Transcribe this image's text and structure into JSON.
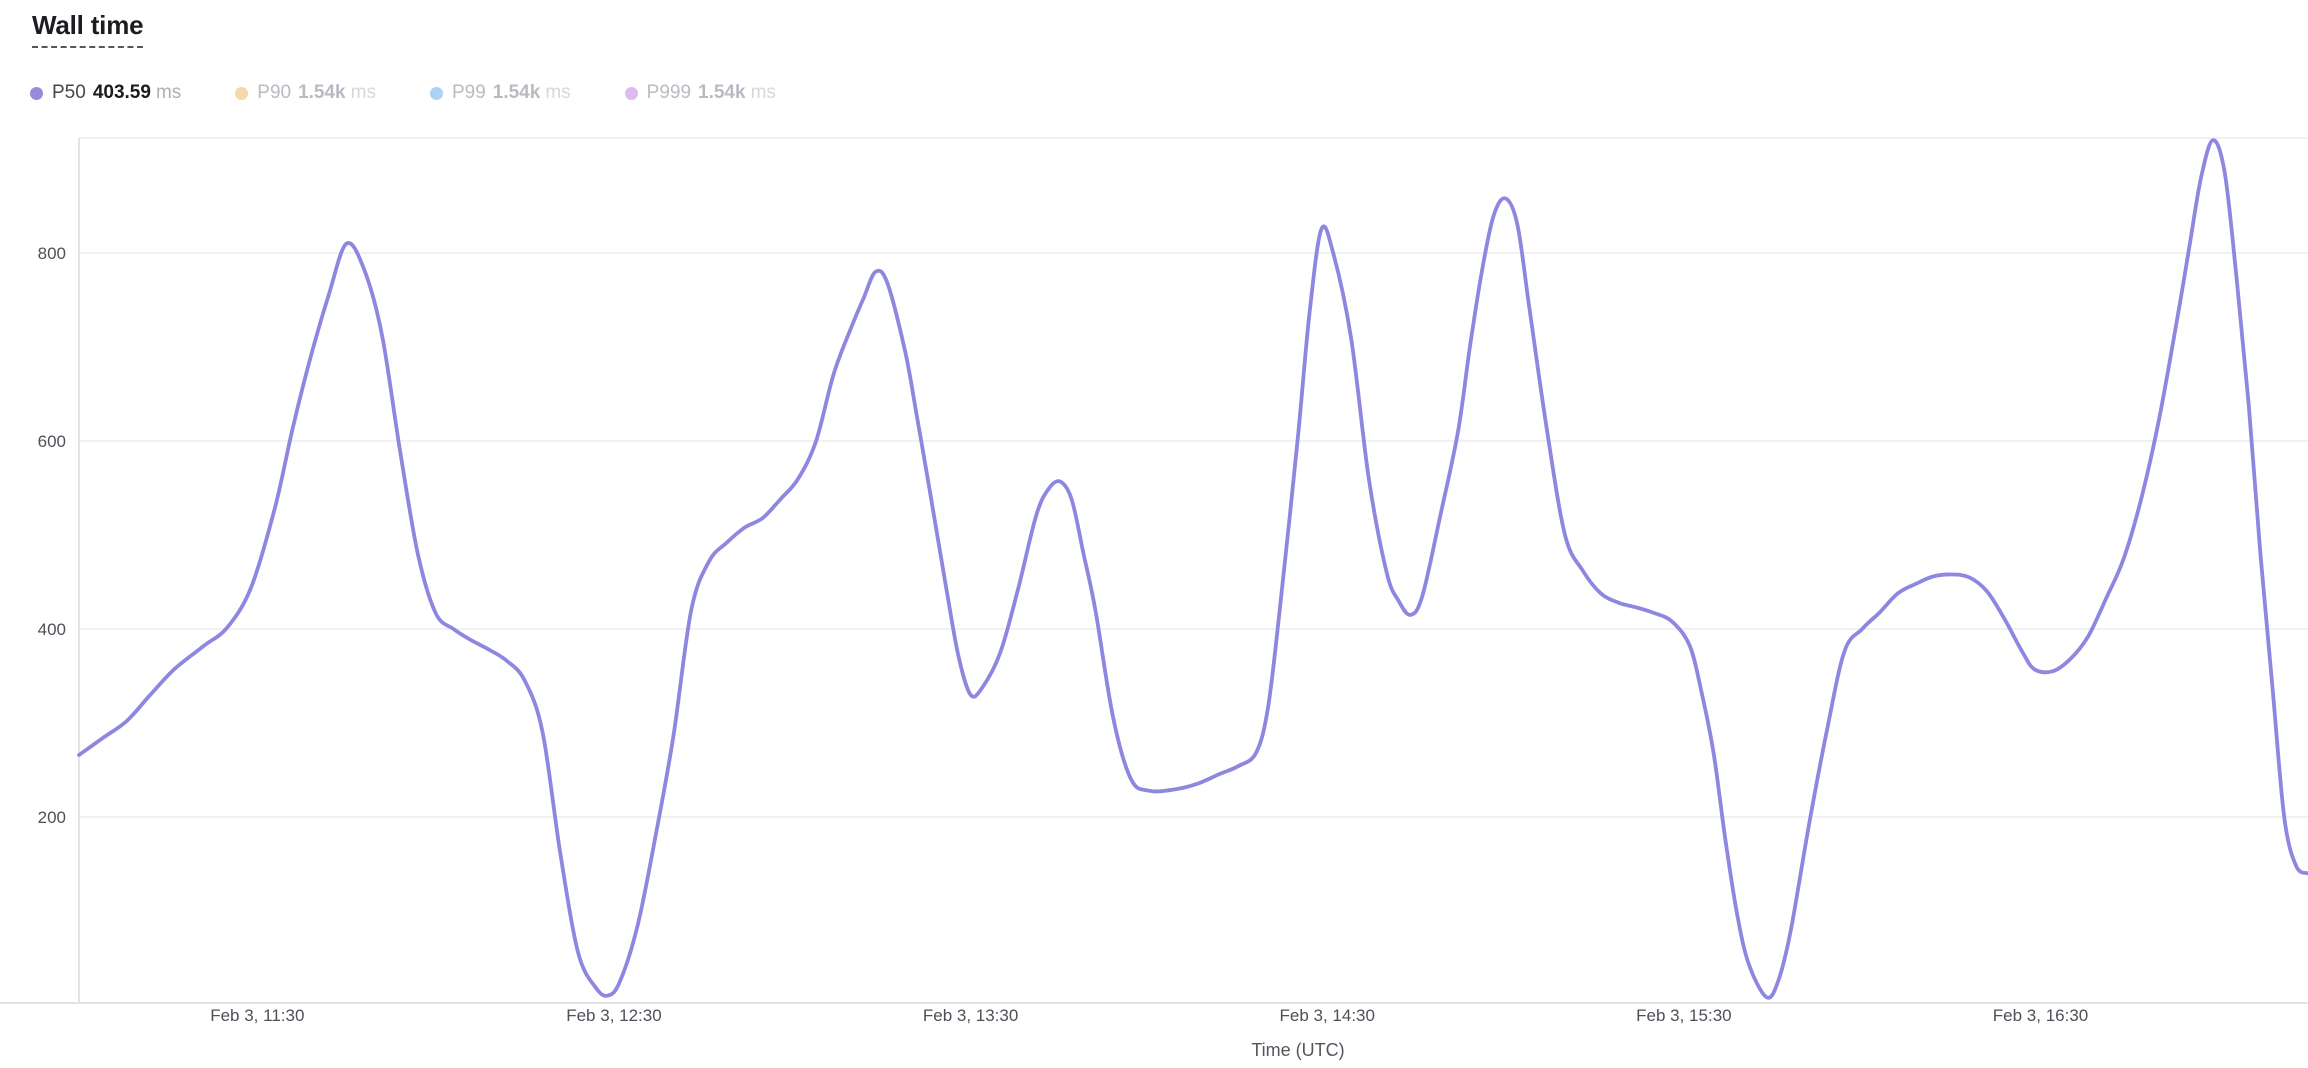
{
  "header": {
    "title": "Wall time"
  },
  "legend": {
    "items": [
      {
        "name": "P50",
        "value": "403.59",
        "unit": "ms",
        "color": "#968bdb",
        "active": true
      },
      {
        "name": "P90",
        "value": "1.54k",
        "unit": "ms",
        "color": "#f7d7ac",
        "active": false
      },
      {
        "name": "P99",
        "value": "1.54k",
        "unit": "ms",
        "color": "#a9d2f4",
        "active": false
      },
      {
        "name": "P999",
        "value": "1.54k",
        "unit": "ms",
        "color": "#ddbbf2",
        "active": false
      }
    ]
  },
  "colors": {
    "line": "#8e87e0",
    "grid": "#f1f1f4",
    "axis": "#e2e2e7",
    "tick_text": "#4f4f57",
    "axis_title_text": "#55555d"
  },
  "chart_data": {
    "type": "line",
    "title": "Wall time",
    "xlabel": "Time (UTC)",
    "ylabel": "",
    "y_unit": "ms",
    "ylim": [
      0,
      925
    ],
    "y_ticks": [
      200,
      400,
      600,
      800
    ],
    "grid": "horizontal",
    "legend_position": "top-left",
    "x_origin_label": "Feb 3, 11:00",
    "x_range_minutes": [
      0,
      375
    ],
    "x_ticks": [
      {
        "minutes": 30,
        "label": "Feb 3, 11:30"
      },
      {
        "minutes": 90,
        "label": "Feb 3, 12:30"
      },
      {
        "minutes": 150,
        "label": "Feb 3, 13:30"
      },
      {
        "minutes": 210,
        "label": "Feb 3, 14:30"
      },
      {
        "minutes": 270,
        "label": "Feb 3, 15:30"
      },
      {
        "minutes": 330,
        "label": "Feb 3, 16:30"
      }
    ],
    "series": [
      {
        "name": "P50",
        "unit": "ms",
        "current": "403.59",
        "points": [
          [
            0,
            266
          ],
          [
            4,
            284
          ],
          [
            8,
            302
          ],
          [
            12,
            330
          ],
          [
            16,
            357
          ],
          [
            21,
            382
          ],
          [
            25,
            402
          ],
          [
            29,
            445
          ],
          [
            33,
            530
          ],
          [
            36,
            615
          ],
          [
            39,
            690
          ],
          [
            42,
            755
          ],
          [
            45,
            810
          ],
          [
            48,
            782
          ],
          [
            51,
            712
          ],
          [
            54,
            590
          ],
          [
            57,
            480
          ],
          [
            60,
            417
          ],
          [
            63,
            400
          ],
          [
            66,
            388
          ],
          [
            69,
            378
          ],
          [
            72,
            366
          ],
          [
            75,
            345
          ],
          [
            78,
            290
          ],
          [
            81,
            160
          ],
          [
            84,
            55
          ],
          [
            87,
            18
          ],
          [
            89,
            10
          ],
          [
            91,
            25
          ],
          [
            94,
            85
          ],
          [
            97,
            180
          ],
          [
            100,
            286
          ],
          [
            103,
            420
          ],
          [
            106,
            472
          ],
          [
            109,
            492
          ],
          [
            112,
            508
          ],
          [
            115,
            518
          ],
          [
            118,
            538
          ],
          [
            121,
            560
          ],
          [
            124,
            600
          ],
          [
            127,
            672
          ],
          [
            130,
            722
          ],
          [
            132,
            752
          ],
          [
            134,
            780
          ],
          [
            136,
            768
          ],
          [
            139,
            695
          ],
          [
            141,
            625
          ],
          [
            143,
            552
          ],
          [
            146,
            440
          ],
          [
            148,
            370
          ],
          [
            150,
            330
          ],
          [
            152,
            338
          ],
          [
            155,
            375
          ],
          [
            158,
            443
          ],
          [
            161,
            520
          ],
          [
            163,
            548
          ],
          [
            165,
            557
          ],
          [
            167,
            538
          ],
          [
            169,
            480
          ],
          [
            171,
            420
          ],
          [
            174,
            305
          ],
          [
            177,
            240
          ],
          [
            180,
            228
          ],
          [
            184,
            229
          ],
          [
            188,
            235
          ],
          [
            192,
            246
          ],
          [
            195,
            254
          ],
          [
            198,
            268
          ],
          [
            200,
            315
          ],
          [
            202,
            420
          ],
          [
            205,
            600
          ],
          [
            207,
            735
          ],
          [
            209,
            825
          ],
          [
            211,
            800
          ],
          [
            214,
            710
          ],
          [
            217,
            560
          ],
          [
            220,
            460
          ],
          [
            222,
            430
          ],
          [
            224,
            415
          ],
          [
            226,
            435
          ],
          [
            229,
            520
          ],
          [
            232,
            610
          ],
          [
            234,
            700
          ],
          [
            236,
            780
          ],
          [
            238,
            840
          ],
          [
            240,
            858
          ],
          [
            242,
            830
          ],
          [
            244,
            742
          ],
          [
            247,
            610
          ],
          [
            250,
            500
          ],
          [
            253,
            462
          ],
          [
            256,
            438
          ],
          [
            259,
            428
          ],
          [
            262,
            423
          ],
          [
            265,
            417
          ],
          [
            268,
            408
          ],
          [
            271,
            382
          ],
          [
            273,
            332
          ],
          [
            275,
            268
          ],
          [
            277,
            175
          ],
          [
            279,
            95
          ],
          [
            281,
            42
          ],
          [
            284,
            8
          ],
          [
            286,
            28
          ],
          [
            288,
            80
          ],
          [
            291,
            190
          ],
          [
            294,
            290
          ],
          [
            297,
            376
          ],
          [
            300,
            400
          ],
          [
            303,
            418
          ],
          [
            306,
            438
          ],
          [
            309,
            448
          ],
          [
            312,
            456
          ],
          [
            315,
            458
          ],
          [
            318,
            455
          ],
          [
            321,
            440
          ],
          [
            324,
            410
          ],
          [
            327,
            375
          ],
          [
            329,
            357
          ],
          [
            332,
            355
          ],
          [
            335,
            368
          ],
          [
            338,
            392
          ],
          [
            341,
            432
          ],
          [
            344,
            475
          ],
          [
            347,
            540
          ],
          [
            350,
            625
          ],
          [
            353,
            730
          ],
          [
            355,
            805
          ],
          [
            357,
            880
          ],
          [
            359,
            920
          ],
          [
            361,
            885
          ],
          [
            363,
            772
          ],
          [
            365,
            640
          ],
          [
            367,
            480
          ],
          [
            369,
            340
          ],
          [
            371,
            200
          ],
          [
            373,
            148
          ],
          [
            375,
            140
          ]
        ]
      },
      {
        "name": "P90",
        "unit": "ms",
        "current": "1.54k",
        "points": [],
        "hidden": true
      },
      {
        "name": "P99",
        "unit": "ms",
        "current": "1.54k",
        "points": [],
        "hidden": true
      },
      {
        "name": "P999",
        "unit": "ms",
        "current": "1.54k",
        "points": [],
        "hidden": true
      }
    ]
  }
}
